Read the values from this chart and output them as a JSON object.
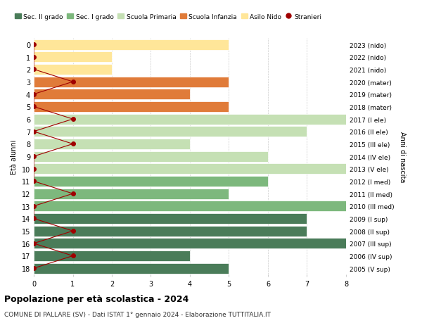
{
  "ages": [
    18,
    17,
    16,
    15,
    14,
    13,
    12,
    11,
    10,
    9,
    8,
    7,
    6,
    5,
    4,
    3,
    2,
    1,
    0
  ],
  "labels_right": [
    "2005 (V sup)",
    "2006 (IV sup)",
    "2007 (III sup)",
    "2008 (II sup)",
    "2009 (I sup)",
    "2010 (III med)",
    "2011 (II med)",
    "2012 (I med)",
    "2013 (V ele)",
    "2014 (IV ele)",
    "2015 (III ele)",
    "2016 (II ele)",
    "2017 (I ele)",
    "2018 (mater)",
    "2019 (mater)",
    "2020 (mater)",
    "2021 (nido)",
    "2022 (nido)",
    "2023 (nido)"
  ],
  "bar_values": [
    5,
    4,
    8,
    7,
    7,
    8,
    5,
    6,
    8,
    6,
    4,
    7,
    8,
    5,
    4,
    5,
    2,
    2,
    5
  ],
  "bar_colors": [
    "#4a7c59",
    "#4a7c59",
    "#4a7c59",
    "#4a7c59",
    "#4a7c59",
    "#7db87d",
    "#7db87d",
    "#7db87d",
    "#c5e0b4",
    "#c5e0b4",
    "#c5e0b4",
    "#c5e0b4",
    "#c5e0b4",
    "#e07b39",
    "#e07b39",
    "#e07b39",
    "#ffe699",
    "#ffe699",
    "#ffe699"
  ],
  "stranieri_x": [
    0,
    1,
    0,
    1,
    0,
    0,
    1,
    0,
    0,
    0,
    1,
    0,
    1,
    0,
    0,
    1,
    0,
    0,
    0
  ],
  "legend_labels": [
    "Sec. II grado",
    "Sec. I grado",
    "Scuola Primaria",
    "Scuola Infanzia",
    "Asilo Nido",
    "Stranieri"
  ],
  "legend_colors": [
    "#4a7c59",
    "#7db87d",
    "#c5e0b4",
    "#e07b39",
    "#ffe699",
    "#a00000"
  ],
  "xlabel": "Età alunni",
  "ylabel_left": "Età alunni",
  "ylabel_right": "Anni di nascita",
  "title": "Popolazione per età scolastica - 2024",
  "subtitle": "COMUNE DI PALLARE (SV) - Dati ISTAT 1° gennaio 2024 - Elaborazione TUTTITALIA.IT",
  "xlim": [
    0,
    8
  ],
  "stranieri_color": "#a00000",
  "bg_color": "#ffffff",
  "bar_edge_color": "#ffffff",
  "grid_color": "#cccccc"
}
